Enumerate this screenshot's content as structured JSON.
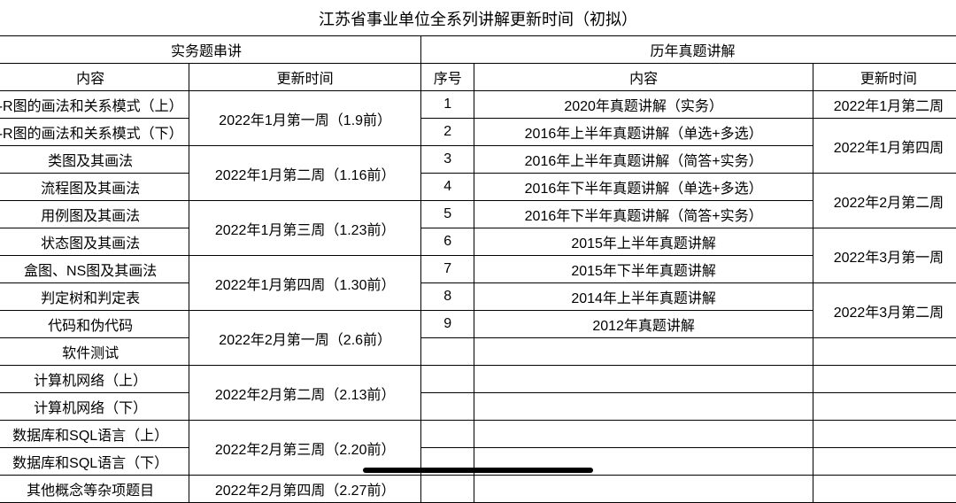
{
  "title": "江苏省事业单位全系列讲解更新时间（初拟）",
  "left": {
    "group_header": "实务题串讲",
    "col_content": "内容",
    "col_time": "更新时间",
    "rows": [
      "-R图的画法和关系模式（上）",
      "-R图的画法和关系模式（下）",
      "类图及其画法",
      "流程图及其画法",
      "用例图及其画法",
      "状态图及其画法",
      "盒图、NS图及其画法",
      "判定树和判定表",
      "代码和伪代码",
      "软件测试",
      "计算机网络（上）",
      "计算机网络（下）",
      "数据库和SQL语言（上）",
      "数据库和SQL语言（下）",
      "其他概念等杂项题目"
    ],
    "times": [
      "2022年1月第一周（1.9前）",
      "2022年1月第二周（1.16前）",
      "2022年1月第三周（1.23前）",
      "2022年1月第四周（1.30前）",
      "2022年2月第一周（2.6前）",
      "2022年2月第二周（2.13前）",
      "2022年2月第三周（2.20前）",
      "2022年2月第四周（2.27前）"
    ]
  },
  "right": {
    "group_header": "历年真题讲解",
    "col_seq": "序号",
    "col_content": "内容",
    "col_time": "更新时间",
    "seqs": [
      "1",
      "2",
      "3",
      "4",
      "5",
      "6",
      "7",
      "8",
      "9"
    ],
    "rows": [
      "2020年真题讲解（实务）",
      "2016年上半年真题讲解（单选+多选）",
      "2016年上半年真题讲解（简答+实务）",
      "2016年下半年真题讲解（单选+多选）",
      "2016年下半年真题讲解（简答+实务）",
      "2015年上半年真题讲解",
      "2015年下半年真题讲解",
      "2014年上半年真题讲解",
      "2012年真题讲解"
    ],
    "times": [
      "2022年1月第二周",
      "2022年1月第四周",
      "2022年2月第二周",
      "2022年3月第一周",
      "2022年3月第二周"
    ]
  },
  "style": {
    "border_color": "#000000",
    "background": "#ffffff",
    "font_size_body": 16,
    "font_size_title": 18
  }
}
